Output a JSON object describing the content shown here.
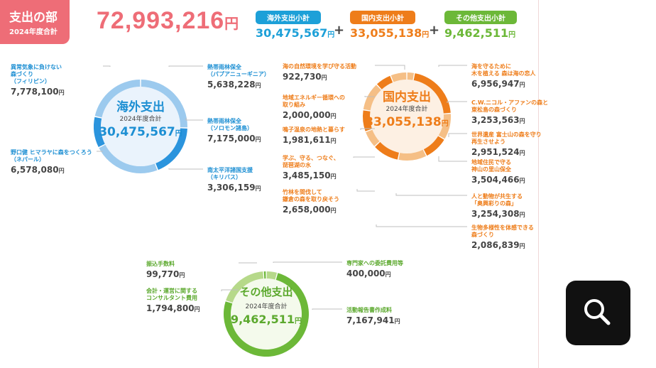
{
  "header": {
    "title": "支出の部",
    "subtitle": "2024年度合計"
  },
  "grand_total": {
    "value": "72,993,216",
    "unit": "円"
  },
  "subtotals": [
    {
      "label": "海外支出小計",
      "value": "30,475,567",
      "unit": "円",
      "color": "#1da0d8"
    },
    {
      "label": "国内支出小計",
      "value": "33,055,138",
      "unit": "円",
      "color": "#ee7d1a"
    },
    {
      "label": "その他支出小計",
      "value": "9,462,511",
      "unit": "円",
      "color": "#6cb838"
    }
  ],
  "plus": "+",
  "yen": "円",
  "icons": {
    "search": "search-icon"
  },
  "chart_data": [
    {
      "type": "pie",
      "center_title": "海外支出",
      "center_sub": "2024年度合計",
      "center_value": "30,475,567",
      "colors": [
        "#9ccaee",
        "#2b94dd"
      ],
      "slices": [
        {
          "label": "異常気象に負けない\n森づくり\n（フィリピン）",
          "value": 7778100,
          "display": "7,778,100"
        },
        {
          "label": "熱帯雨林保全\n（パプアニューギニア）",
          "value": 5638228,
          "display": "5,638,228"
        },
        {
          "label": "熱帯雨林保全\n（ソロモン諸島）",
          "value": 7175000,
          "display": "7,175,000"
        },
        {
          "label": "南太平洋諸国支援\n（キリバス）",
          "value": 3306159,
          "display": "3,306,159"
        },
        {
          "label": "野口健 ヒマラヤに森をつくろう\n（ネパール）",
          "value": 6578080,
          "display": "6,578,080"
        }
      ]
    },
    {
      "type": "pie",
      "center_title": "国内支出",
      "center_sub": "2024年度合計",
      "center_value": "33,055,138",
      "colors": [
        "#f5bf86",
        "#ee7d1a"
      ],
      "slices": [
        {
          "label": "海の自然環境を学び守る活動",
          "value": 922730,
          "display": "922,730"
        },
        {
          "label": "海を守るために\n木を植える 森は海の恋人",
          "value": 6956947,
          "display": "6,956,947"
        },
        {
          "label": "C.W.ニコル・アファンの森と\n東松島の森づくり",
          "value": 3253563,
          "display": "3,253,563"
        },
        {
          "label": "世界遺産 富士山の森を守り\n再生させよう",
          "value": 2951524,
          "display": "2,951,524"
        },
        {
          "label": "地域住民で守る\n神山の里山保全",
          "value": 3504466,
          "display": "3,504,466"
        },
        {
          "label": "人と動物が共生する\n「奥興彩りの森」",
          "value": 3254308,
          "display": "3,254,308"
        },
        {
          "label": "生物多様性を体感できる\n森づくり",
          "value": 2086839,
          "display": "2,086,839"
        },
        {
          "label": "竹林を間伐して\n鎌倉の森を取り戻そう",
          "value": 2658000,
          "display": "2,658,000"
        },
        {
          "label": "学ぶ、守る、つなぐ、\n琵琶湖の水",
          "value": 3485150,
          "display": "3,485,150"
        },
        {
          "label": "鳴子温泉の地熱と暮らす",
          "value": 1981611,
          "display": "1,981,611"
        },
        {
          "label": "地域エネルギー循環への\n取り組み",
          "value": 2000000,
          "display": "2,000,000"
        }
      ]
    },
    {
      "type": "pie",
      "center_title": "その他支出",
      "center_sub": "2024年度合計",
      "center_value": "9,462,511",
      "colors": [
        "#b6d98a",
        "#6cb838"
      ],
      "slices": [
        {
          "label": "専門家への委託費用等",
          "value": 400000,
          "display": "400,000"
        },
        {
          "label": "活動報告書作成料",
          "value": 7167941,
          "display": "7,167,941"
        },
        {
          "label": "会計・運営に関する\nコンサルタント費用",
          "value": 1794800,
          "display": "1,794,800"
        },
        {
          "label": "振込手数料",
          "value": 99770,
          "display": "99,770"
        }
      ]
    }
  ]
}
